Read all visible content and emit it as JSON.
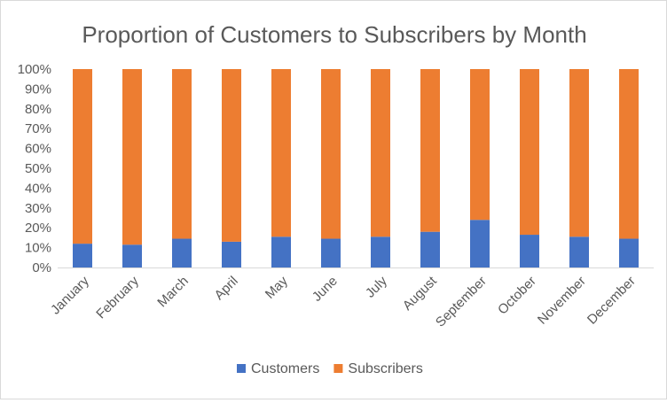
{
  "chart_data": {
    "type": "bar",
    "stacked": true,
    "percent_stacked": true,
    "title": "Proportion of Customers to Subscribers by Month",
    "xlabel": "",
    "ylabel": "",
    "categories": [
      "January",
      "February",
      "March",
      "April",
      "May",
      "June",
      "July",
      "August",
      "September",
      "October",
      "November",
      "December"
    ],
    "series": [
      {
        "name": "Customers",
        "color": "#4472c4",
        "values": [
          12,
          11.5,
          14.5,
          13,
          15.5,
          14.5,
          15.5,
          18,
          24,
          16.5,
          15.5,
          14.5
        ]
      },
      {
        "name": "Subscribers",
        "color": "#ed7d31",
        "values": [
          88,
          88.5,
          85.5,
          87,
          84.5,
          85.5,
          84.5,
          82,
          76,
          83.5,
          84.5,
          85.5
        ]
      }
    ],
    "yticks": [
      "0%",
      "10%",
      "20%",
      "30%",
      "40%",
      "50%",
      "60%",
      "70%",
      "80%",
      "90%",
      "100%"
    ],
    "ylim": [
      0,
      100
    ],
    "grid": false,
    "legend_position": "bottom"
  }
}
